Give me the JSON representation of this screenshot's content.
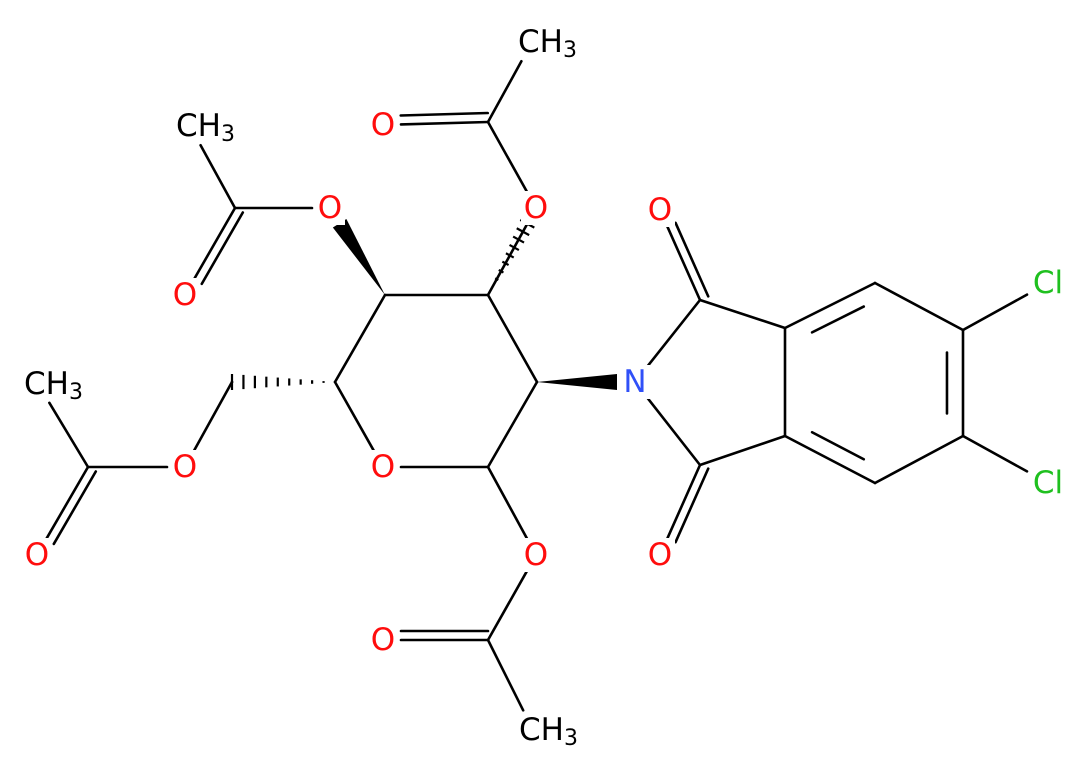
{
  "atoms": [
    {
      "text": "CH",
      "sub": "3"
    },
    {
      "text": "O"
    },
    {
      "text": "O"
    },
    {
      "text": "CH",
      "sub": "3"
    },
    {
      "text": "O"
    },
    {
      "text": "O"
    },
    {
      "text": "CH",
      "sub": "3"
    },
    {
      "text": "O"
    },
    {
      "text": "O"
    },
    {
      "text": "O"
    },
    {
      "text": "O"
    },
    {
      "text": "O"
    },
    {
      "text": "CH",
      "sub": "3"
    },
    {
      "text": "N"
    },
    {
      "text": "O"
    },
    {
      "text": "O"
    },
    {
      "text": "Cl"
    },
    {
      "text": "Cl"
    }
  ]
}
